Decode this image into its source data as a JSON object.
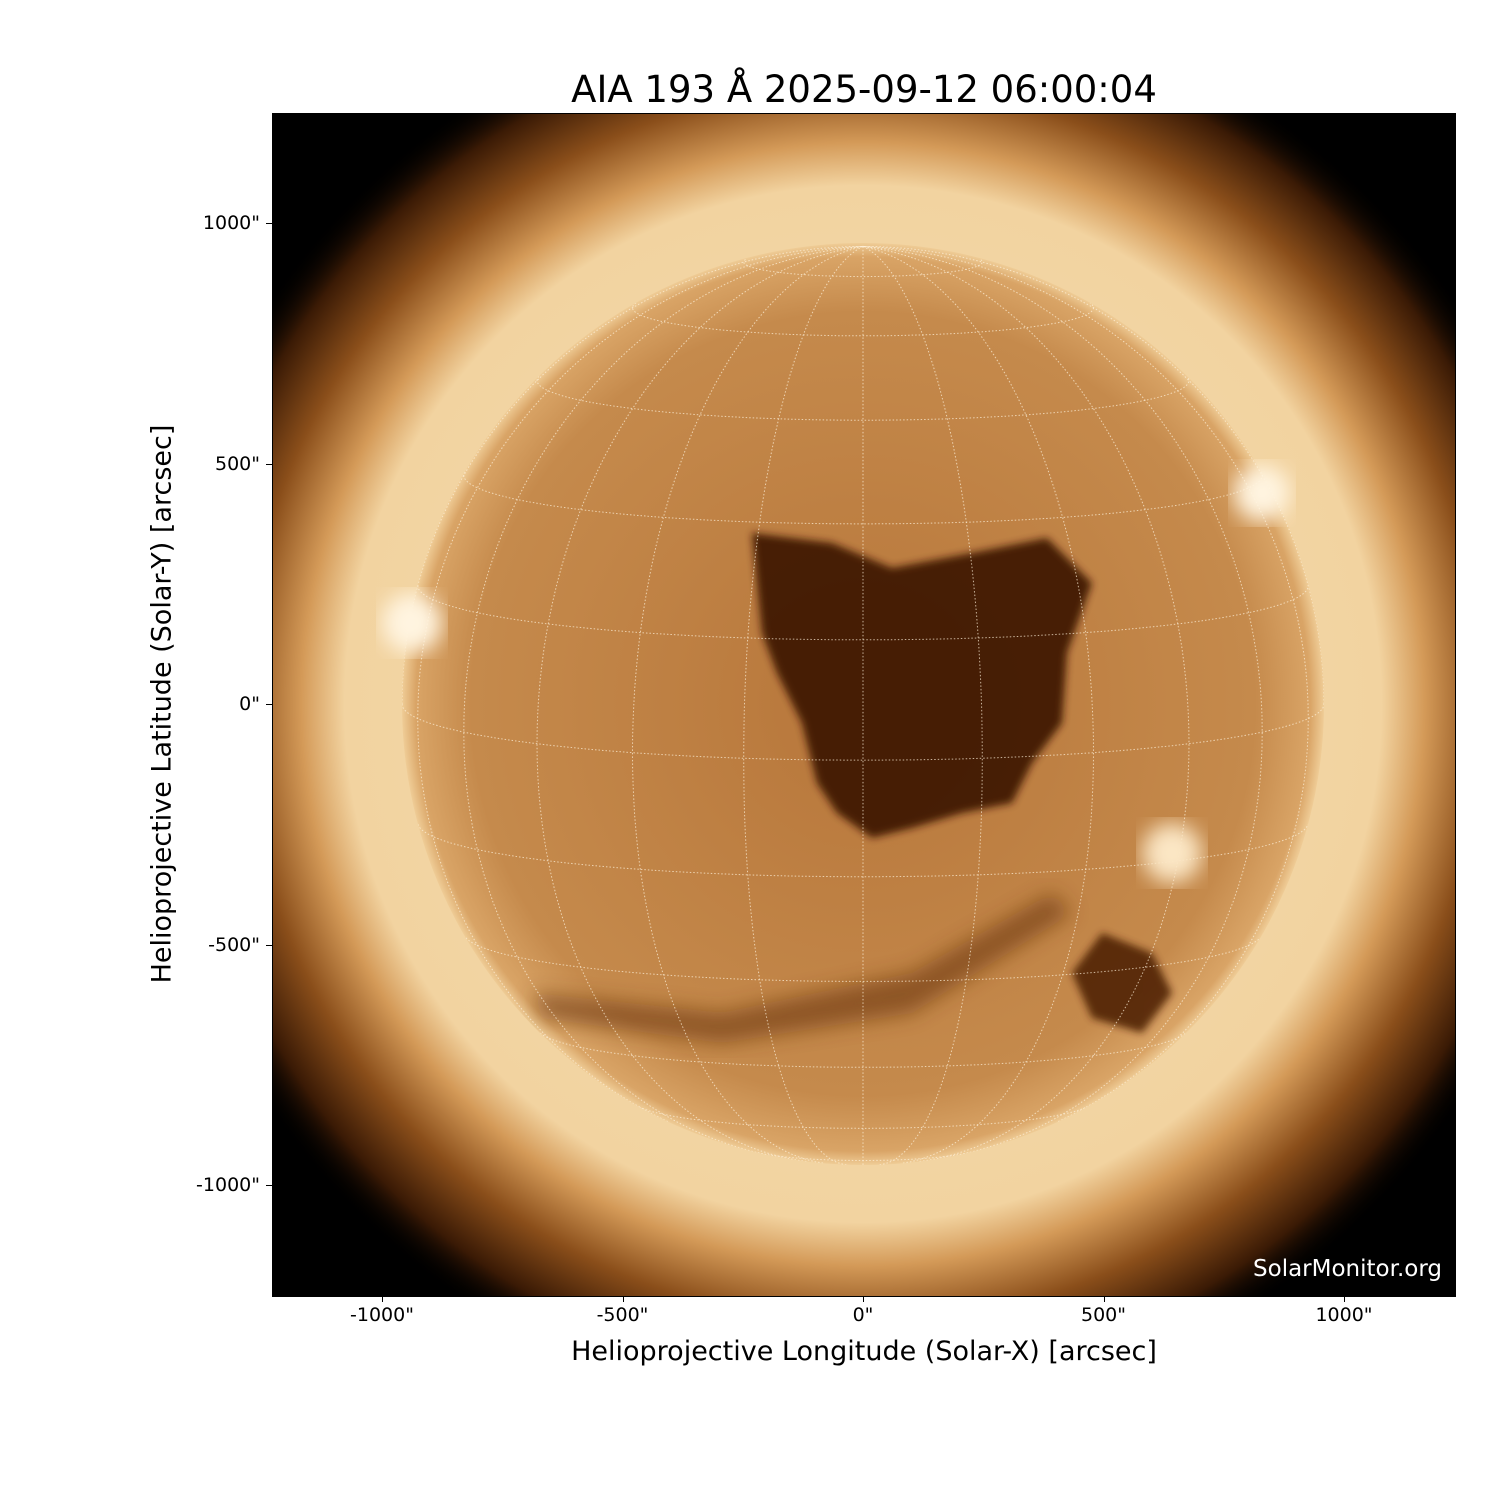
{
  "title": "AIA 193 Å 2025-09-12 06:00:04",
  "plot": {
    "xlabel": "Helioprojective Longitude (Solar-X) [arcsec]",
    "ylabel": "Helioprojective Latitude (Solar-Y) [arcsec]",
    "xlim": [
      -1230,
      1230
    ],
    "ylim": [
      -1230,
      1230
    ],
    "xticks": [
      "-1000\"",
      "-500\"",
      "0\"",
      "500\"",
      "1000\""
    ],
    "yticks": [
      "1000\"",
      "500\"",
      "0\"",
      "-500\"",
      "-1000\""
    ],
    "tick_values": [
      -1000,
      -500,
      0,
      500,
      1000
    ],
    "solar_radius_arcsec": 958,
    "grid_spacing_deg": 15,
    "colormap": "sdoaia193",
    "colors": {
      "disk": "#c08040",
      "corona": "#f0d0a0",
      "coronal_hole": "#3a1400",
      "background": "#000000"
    }
  },
  "watermark": "SolarMonitor.org"
}
